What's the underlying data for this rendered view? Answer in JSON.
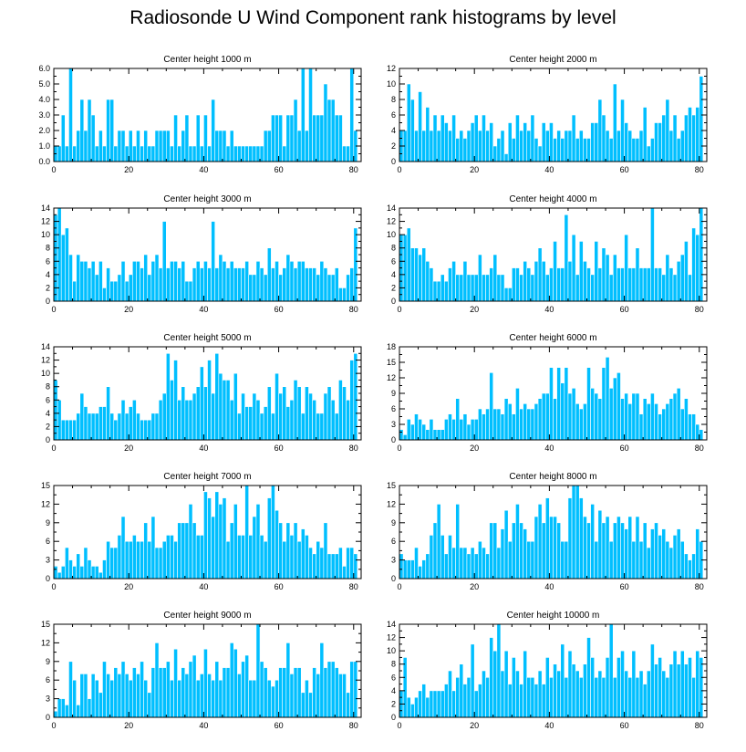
{
  "figure_title": "Radiosonde U Wind Component rank histograms by level",
  "colors": {
    "bar": "#00BFFF",
    "axis": "#000000"
  },
  "chart_data": [
    {
      "type": "bar",
      "title": "Center height 1000 m",
      "xlim": [
        0,
        82
      ],
      "ylim": [
        0,
        6
      ],
      "xticks": [
        0,
        20,
        40,
        60,
        80
      ],
      "xtick_labels": [
        "0",
        "20",
        "40",
        "60",
        "80"
      ],
      "yticks": [
        0,
        1,
        2,
        3,
        4,
        5,
        6
      ],
      "ytick_labels": [
        "0.0",
        "1.0",
        "2.0",
        "3.0",
        "4.0",
        "5.0",
        "6.0"
      ],
      "values": [
        1,
        1,
        3,
        1,
        6,
        1,
        2,
        4,
        2,
        4,
        3,
        1,
        2,
        1,
        4,
        4,
        1,
        2,
        2,
        1,
        2,
        1,
        2,
        1,
        2,
        1,
        1,
        2,
        2,
        2,
        2,
        1,
        3,
        1,
        2,
        3,
        1,
        1,
        3,
        1,
        3,
        1,
        4,
        2,
        2,
        2,
        1,
        2,
        1,
        1,
        1,
        1,
        1,
        1,
        1,
        1,
        2,
        2,
        3,
        3,
        3,
        1,
        3,
        3,
        4,
        2,
        6,
        2,
        6,
        3,
        3,
        3,
        5,
        4,
        4,
        3,
        3,
        1,
        1,
        6,
        2
      ],
      "xlabel": "",
      "ylabel": ""
    },
    {
      "type": "bar",
      "title": "Center height 2000 m",
      "xlim": [
        0,
        82
      ],
      "ylim": [
        0,
        12
      ],
      "xticks": [
        0,
        20,
        40,
        60,
        80
      ],
      "xtick_labels": [
        "0",
        "20",
        "40",
        "60",
        "80"
      ],
      "yticks": [
        0,
        2,
        4,
        6,
        8,
        10,
        12
      ],
      "ytick_labels": [
        "0",
        "2",
        "4",
        "6",
        "8",
        "10",
        "12"
      ],
      "values": [
        4,
        4,
        10,
        8,
        4,
        9,
        4,
        7,
        4,
        6,
        4,
        6,
        5,
        4,
        6,
        3,
        4,
        3,
        4,
        5,
        6,
        4,
        6,
        4,
        5,
        2,
        3,
        4,
        1,
        5,
        3,
        6,
        4,
        5,
        4,
        6,
        3,
        2,
        5,
        4,
        5,
        3,
        4,
        3,
        4,
        4,
        6,
        3,
        4,
        3,
        3,
        5,
        5,
        8,
        6,
        4,
        3,
        10,
        4,
        8,
        5,
        4,
        3,
        3,
        4,
        7,
        2,
        3,
        5,
        5,
        6,
        8,
        4,
        6,
        3,
        4,
        6,
        7,
        6,
        7,
        11
      ],
      "xlabel": "",
      "ylabel": ""
    },
    {
      "type": "bar",
      "title": "Center height 3000 m",
      "xlim": [
        0,
        82
      ],
      "ylim": [
        0,
        14
      ],
      "xticks": [
        0,
        20,
        40,
        60,
        80
      ],
      "xtick_labels": [
        "0",
        "20",
        "40",
        "60",
        "80"
      ],
      "yticks": [
        0,
        2,
        4,
        6,
        8,
        10,
        12,
        14
      ],
      "ytick_labels": [
        "0",
        "2",
        "4",
        "6",
        "8",
        "10",
        "12",
        "14"
      ],
      "values": [
        13,
        14,
        10,
        11,
        7,
        3,
        7,
        6,
        6,
        5,
        6,
        4,
        6,
        2,
        5,
        3,
        3,
        4,
        6,
        3,
        4,
        6,
        6,
        5,
        7,
        4,
        6,
        7,
        5,
        12,
        5,
        6,
        6,
        5,
        6,
        3,
        3,
        5,
        6,
        5,
        6,
        5,
        12,
        5,
        7,
        6,
        5,
        6,
        5,
        5,
        5,
        6,
        4,
        4,
        6,
        5,
        4,
        8,
        5,
        6,
        4,
        5,
        7,
        6,
        5,
        6,
        6,
        5,
        5,
        5,
        4,
        6,
        5,
        4,
        4,
        5,
        2,
        2,
        4,
        5,
        11
      ],
      "xlabel": "",
      "ylabel": ""
    },
    {
      "type": "bar",
      "title": "Center height 4000 m",
      "xlim": [
        0,
        82
      ],
      "ylim": [
        0,
        14
      ],
      "xticks": [
        0,
        20,
        40,
        60,
        80
      ],
      "xtick_labels": [
        "0",
        "20",
        "40",
        "60",
        "80"
      ],
      "yticks": [
        0,
        2,
        4,
        6,
        8,
        10,
        12,
        14
      ],
      "ytick_labels": [
        "0",
        "2",
        "4",
        "6",
        "8",
        "10",
        "12",
        "14"
      ],
      "values": [
        10,
        10,
        11,
        8,
        8,
        7,
        8,
        6,
        5,
        3,
        3,
        4,
        3,
        5,
        6,
        4,
        4,
        6,
        4,
        4,
        4,
        7,
        4,
        4,
        5,
        7,
        4,
        4,
        2,
        2,
        5,
        5,
        4,
        6,
        5,
        4,
        6,
        8,
        6,
        4,
        5,
        9,
        5,
        5,
        13,
        6,
        10,
        4,
        9,
        6,
        5,
        4,
        9,
        5,
        8,
        7,
        4,
        7,
        5,
        5,
        10,
        5,
        5,
        8,
        5,
        5,
        5,
        14,
        5,
        5,
        4,
        7,
        5,
        4,
        6,
        7,
        9,
        4,
        11,
        10,
        14
      ],
      "xlabel": "",
      "ylabel": ""
    },
    {
      "type": "bar",
      "title": "Center height 5000 m",
      "xlim": [
        0,
        82
      ],
      "ylim": [
        0,
        14
      ],
      "xticks": [
        0,
        20,
        40,
        60,
        80
      ],
      "xtick_labels": [
        "0",
        "20",
        "40",
        "60",
        "80"
      ],
      "yticks": [
        0,
        2,
        4,
        6,
        8,
        10,
        12,
        14
      ],
      "ytick_labels": [
        "0",
        "2",
        "4",
        "6",
        "8",
        "10",
        "12",
        "14"
      ],
      "values": [
        9,
        6,
        3,
        3,
        3,
        3,
        4,
        7,
        5,
        4,
        4,
        4,
        5,
        5,
        8,
        4,
        3,
        4,
        6,
        4,
        5,
        6,
        4,
        3,
        3,
        3,
        4,
        4,
        6,
        7,
        13,
        9,
        12,
        6,
        8,
        6,
        6,
        7,
        8,
        11,
        8,
        12,
        7,
        13,
        10,
        9,
        9,
        6,
        10,
        4,
        7,
        5,
        5,
        7,
        6,
        4,
        5,
        8,
        4,
        10,
        7,
        8,
        5,
        6,
        9,
        8,
        4,
        8,
        7,
        6,
        4,
        4,
        7,
        8,
        6,
        4,
        9,
        8,
        6,
        12,
        13
      ],
      "xlabel": "",
      "ylabel": ""
    },
    {
      "type": "bar",
      "title": "Center height 6000 m",
      "xlim": [
        0,
        82
      ],
      "ylim": [
        0,
        18
      ],
      "xticks": [
        0,
        20,
        40,
        60,
        80
      ],
      "xtick_labels": [
        "0",
        "20",
        "40",
        "60",
        "80"
      ],
      "yticks": [
        0,
        3,
        6,
        9,
        12,
        15,
        18
      ],
      "ytick_labels": [
        "0",
        "3",
        "6",
        "9",
        "12",
        "15",
        "18"
      ],
      "values": [
        2,
        1,
        4,
        3,
        5,
        4,
        3,
        2,
        4,
        2,
        2,
        2,
        4,
        5,
        4,
        8,
        4,
        5,
        3,
        4,
        4,
        6,
        5,
        6,
        13,
        6,
        6,
        5,
        8,
        7,
        5,
        10,
        6,
        7,
        6,
        6,
        7,
        8,
        9,
        9,
        14,
        8,
        14,
        11,
        14,
        9,
        10,
        7,
        6,
        7,
        14,
        10,
        9,
        8,
        14,
        16,
        10,
        12,
        13,
        8,
        9,
        7,
        9,
        9,
        5,
        8,
        7,
        9,
        7,
        5,
        6,
        7,
        8,
        9,
        10,
        6,
        8,
        5,
        5,
        3,
        2
      ],
      "xlabel": "",
      "ylabel": ""
    },
    {
      "type": "bar",
      "title": "Center height 7000 m",
      "xlim": [
        0,
        82
      ],
      "ylim": [
        0,
        15
      ],
      "xticks": [
        0,
        20,
        40,
        60,
        80
      ],
      "xtick_labels": [
        "0",
        "20",
        "40",
        "60",
        "80"
      ],
      "yticks": [
        0,
        3,
        6,
        9,
        12,
        15
      ],
      "ytick_labels": [
        "0",
        "3",
        "6",
        "9",
        "12",
        "15"
      ],
      "values": [
        2,
        1,
        2,
        5,
        3,
        2,
        4,
        2,
        5,
        3,
        2,
        2,
        1,
        3,
        6,
        5,
        5,
        7,
        10,
        6,
        6,
        7,
        6,
        6,
        9,
        6,
        10,
        5,
        5,
        6,
        7,
        7,
        6,
        9,
        9,
        9,
        12,
        9,
        7,
        7,
        14,
        13,
        10,
        14,
        12,
        13,
        6,
        9,
        12,
        7,
        7,
        15,
        7,
        10,
        12,
        7,
        6,
        13,
        15,
        11,
        9,
        6,
        9,
        7,
        9,
        6,
        8,
        7,
        5,
        4,
        6,
        5,
        9,
        4,
        4,
        4,
        5,
        2,
        5,
        5,
        4
      ],
      "xlabel": "",
      "ylabel": ""
    },
    {
      "type": "bar",
      "title": "Center height 8000 m",
      "xlim": [
        0,
        82
      ],
      "ylim": [
        0,
        15
      ],
      "xticks": [
        0,
        20,
        40,
        60,
        80
      ],
      "xtick_labels": [
        "0",
        "20",
        "40",
        "60",
        "80"
      ],
      "yticks": [
        0,
        3,
        6,
        9,
        12,
        15
      ],
      "ytick_labels": [
        "0",
        "3",
        "6",
        "9",
        "12",
        "15"
      ],
      "values": [
        4,
        3,
        3,
        3,
        5,
        2,
        3,
        4,
        7,
        9,
        12,
        7,
        4,
        7,
        5,
        12,
        5,
        5,
        4,
        5,
        4,
        6,
        5,
        4,
        9,
        9,
        5,
        8,
        11,
        6,
        9,
        12,
        9,
        8,
        6,
        6,
        10,
        12,
        9,
        13,
        10,
        10,
        9,
        6,
        6,
        13,
        15,
        15,
        13,
        10,
        9,
        12,
        6,
        11,
        9,
        10,
        6,
        9,
        10,
        9,
        8,
        10,
        6,
        10,
        6,
        9,
        5,
        8,
        9,
        7,
        8,
        6,
        5,
        7,
        8,
        6,
        4,
        3,
        4,
        8,
        6
      ],
      "xlabel": "",
      "ylabel": ""
    },
    {
      "type": "bar",
      "title": "Center height 9000 m",
      "xlim": [
        0,
        82
      ],
      "ylim": [
        0,
        15
      ],
      "xticks": [
        0,
        20,
        40,
        60,
        80
      ],
      "xtick_labels": [
        "0",
        "20",
        "40",
        "60",
        "80"
      ],
      "yticks": [
        0,
        3,
        6,
        9,
        12,
        15
      ],
      "ytick_labels": [
        "0",
        "3",
        "6",
        "9",
        "12",
        "15"
      ],
      "values": [
        1,
        3,
        3,
        2,
        9,
        6,
        2,
        7,
        7,
        3,
        7,
        6,
        4,
        9,
        7,
        6,
        8,
        7,
        9,
        7,
        6,
        8,
        7,
        9,
        6,
        4,
        8,
        12,
        8,
        8,
        9,
        6,
        11,
        6,
        8,
        7,
        9,
        10,
        6,
        7,
        11,
        7,
        6,
        9,
        6,
        8,
        8,
        12,
        11,
        7,
        9,
        10,
        6,
        6,
        15,
        9,
        8,
        6,
        5,
        6,
        8,
        8,
        12,
        7,
        8,
        8,
        4,
        6,
        4,
        8,
        7,
        12,
        8,
        9,
        9,
        8,
        7,
        7,
        4,
        9,
        9
      ],
      "xlabel": "",
      "ylabel": ""
    },
    {
      "type": "bar",
      "title": "Center height 10000 m",
      "xlim": [
        0,
        82
      ],
      "ylim": [
        0,
        14
      ],
      "xticks": [
        0,
        20,
        40,
        60,
        80
      ],
      "xtick_labels": [
        "0",
        "20",
        "40",
        "60",
        "80"
      ],
      "yticks": [
        0,
        2,
        4,
        6,
        8,
        10,
        12,
        14
      ],
      "ytick_labels": [
        "0",
        "2",
        "4",
        "6",
        "8",
        "10",
        "12",
        "14"
      ],
      "values": [
        4,
        9,
        3,
        2,
        3,
        4,
        5,
        3,
        4,
        4,
        4,
        4,
        5,
        7,
        4,
        6,
        8,
        5,
        6,
        11,
        4,
        5,
        7,
        6,
        12,
        10,
        14,
        7,
        10,
        5,
        9,
        7,
        5,
        10,
        6,
        6,
        5,
        7,
        5,
        9,
        6,
        8,
        7,
        11,
        6,
        10,
        8,
        7,
        6,
        8,
        12,
        9,
        6,
        7,
        6,
        9,
        14,
        6,
        9,
        10,
        7,
        6,
        10,
        6,
        7,
        5,
        7,
        11,
        8,
        9,
        7,
        6,
        8,
        10,
        8,
        10,
        8,
        9,
        6,
        10,
        9
      ],
      "xlabel": "",
      "ylabel": ""
    }
  ]
}
